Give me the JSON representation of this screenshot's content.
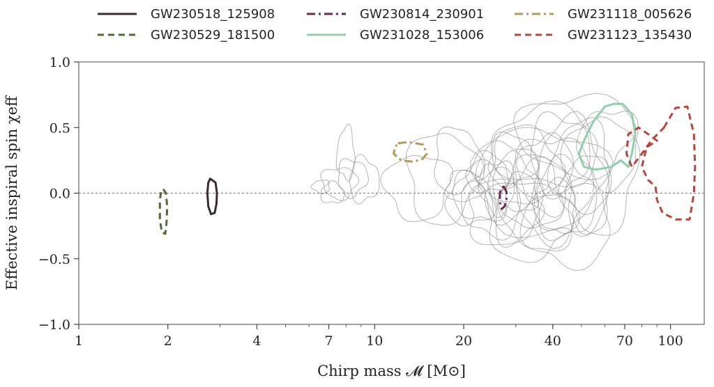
{
  "chart_data": {
    "type": "scatter",
    "title": "",
    "xlabel": "Chirp mass 𝓜 [M⊙]",
    "ylabel": "Effective inspiral spin χeff",
    "xscale": "log",
    "xlim": [
      1,
      130
    ],
    "ylim": [
      -1.0,
      1.0
    ],
    "x_ticks": [
      1,
      2,
      4,
      7,
      10,
      20,
      40,
      70,
      100
    ],
    "x_tick_labels": [
      "1",
      "2",
      "4",
      "7",
      "10",
      "20",
      "40",
      "70",
      "100"
    ],
    "y_ticks": [
      -1.0,
      -0.5,
      0.0,
      0.5,
      1.0
    ],
    "y_tick_labels": [
      "−1.0",
      "−0.5",
      "0.0",
      "0.5",
      "1.0"
    ],
    "zero_line": 0.0,
    "grid": false,
    "legend_position": "top",
    "series": [
      {
        "name": "GW230518_125908",
        "color": "#3b2a2e",
        "style": "solid",
        "contour": [
          [
            2.82,
            0.1
          ],
          [
            2.9,
            0.08
          ],
          [
            2.93,
            0
          ],
          [
            2.92,
            -0.08
          ],
          [
            2.88,
            -0.15
          ],
          [
            2.8,
            -0.16
          ],
          [
            2.74,
            -0.1
          ],
          [
            2.72,
            0
          ],
          [
            2.74,
            0.08
          ],
          [
            2.78,
            0.11
          ]
        ]
      },
      {
        "name": "GW230529_181500",
        "color": "#4e6b35",
        "style": "dashed",
        "contour": [
          [
            1.93,
            0.03
          ],
          [
            1.97,
            0
          ],
          [
            1.99,
            -0.1
          ],
          [
            1.98,
            -0.22
          ],
          [
            1.96,
            -0.31
          ],
          [
            1.91,
            -0.3
          ],
          [
            1.88,
            -0.2
          ],
          [
            1.88,
            -0.05
          ],
          [
            1.9,
            0.02
          ]
        ]
      },
      {
        "name": "GW230814_230901",
        "color": "#6a2a55",
        "style": "dashdot",
        "contour": [
          [
            27.3,
            0.05
          ],
          [
            27.9,
            0.01
          ],
          [
            27.9,
            -0.05
          ],
          [
            27.5,
            -0.1
          ],
          [
            26.9,
            -0.12
          ],
          [
            26.5,
            -0.07
          ],
          [
            26.5,
            0.0
          ],
          [
            26.8,
            0.04
          ]
        ]
      },
      {
        "name": "GW231028_153006",
        "color": "#8fd0ac",
        "style": "solid",
        "contour": [
          [
            55,
            0.55
          ],
          [
            60,
            0.66
          ],
          [
            64,
            0.68
          ],
          [
            69,
            0.68
          ],
          [
            74,
            0.6
          ],
          [
            76,
            0.45
          ],
          [
            74,
            0.3
          ],
          [
            72,
            0.2
          ],
          [
            68,
            0.25
          ],
          [
            63,
            0.2
          ],
          [
            56,
            0.18
          ],
          [
            51,
            0.2
          ],
          [
            49,
            0.3
          ],
          [
            51,
            0.4
          ],
          [
            53,
            0.48
          ]
        ]
      },
      {
        "name": "GW231118_005626",
        "color": "#b29a5c",
        "style": "dashdot",
        "contour": [
          [
            12,
            0.38
          ],
          [
            13,
            0.39
          ],
          [
            14.6,
            0.37
          ],
          [
            15,
            0.3
          ],
          [
            14.5,
            0.26
          ],
          [
            13.5,
            0.24
          ],
          [
            12.3,
            0.25
          ],
          [
            11.6,
            0.3
          ],
          [
            11.7,
            0.35
          ]
        ]
      },
      {
        "name": "GW231123_135430",
        "color": "#b9443a",
        "style": "dashed",
        "contour": [
          [
            95,
            0.5
          ],
          [
            104,
            0.65
          ],
          [
            114,
            0.66
          ],
          [
            120,
            0.45
          ],
          [
            121,
            0.2
          ],
          [
            120,
            0
          ],
          [
            116,
            -0.2
          ],
          [
            104,
            -0.2
          ],
          [
            94,
            -0.15
          ],
          [
            90,
            -0.05
          ],
          [
            89,
            0.05
          ],
          [
            84,
            0.1
          ],
          [
            80,
            0.2
          ],
          [
            83,
            0.35
          ],
          [
            90,
            0.4
          ],
          [
            84,
            0.45
          ],
          [
            78,
            0.5
          ],
          [
            72,
            0.45
          ],
          [
            71,
            0.3
          ],
          [
            74,
            0.2
          ],
          [
            80,
            0.3
          ],
          [
            86,
            0.4
          ]
        ]
      }
    ],
    "population_contours": [
      {
        "cx": 7.6,
        "cy": 0.08,
        "rx": 0.06,
        "ry": 0.12
      },
      {
        "cx": 8.4,
        "cy": 0.12,
        "rx": 0.05,
        "ry": 0.14
      },
      {
        "cx": 9.2,
        "cy": 0.1,
        "rx": 0.05,
        "ry": 0.17
      },
      {
        "cx": 7.2,
        "cy": 0.0,
        "rx": 0.04,
        "ry": 0.08
      },
      {
        "cx": 8.0,
        "cy": 0.3,
        "rx": 0.03,
        "ry": 0.2
      },
      {
        "cx": 6.6,
        "cy": 0.05,
        "rx": 0.03,
        "ry": 0.05
      },
      {
        "cx": 14.0,
        "cy": 0.05,
        "rx": 0.11,
        "ry": 0.25
      },
      {
        "cx": 17.0,
        "cy": 0.12,
        "rx": 0.12,
        "ry": 0.35
      },
      {
        "cx": 19.0,
        "cy": 0.25,
        "rx": 0.08,
        "ry": 0.25
      },
      {
        "cx": 21.0,
        "cy": -0.05,
        "rx": 0.08,
        "ry": 0.2
      },
      {
        "cx": 23.0,
        "cy": 0.0,
        "rx": 0.09,
        "ry": 0.22
      },
      {
        "cx": 25.0,
        "cy": -0.08,
        "rx": 0.1,
        "ry": 0.25
      },
      {
        "cx": 26.0,
        "cy": 0.05,
        "rx": 0.06,
        "ry": 0.2
      },
      {
        "cx": 28.0,
        "cy": 0.1,
        "rx": 0.1,
        "ry": 0.3
      },
      {
        "cx": 30.0,
        "cy": -0.05,
        "rx": 0.08,
        "ry": 0.35
      },
      {
        "cx": 32.0,
        "cy": 0.2,
        "rx": 0.12,
        "ry": 0.3
      },
      {
        "cx": 34.0,
        "cy": 0.0,
        "rx": 0.1,
        "ry": 0.28
      },
      {
        "cx": 36.0,
        "cy": -0.1,
        "rx": 0.12,
        "ry": 0.35
      },
      {
        "cx": 38.0,
        "cy": 0.15,
        "rx": 0.09,
        "ry": 0.3
      },
      {
        "cx": 40.0,
        "cy": 0.05,
        "rx": 0.13,
        "ry": 0.4
      },
      {
        "cx": 42.0,
        "cy": 0.3,
        "rx": 0.1,
        "ry": 0.3
      },
      {
        "cx": 44.0,
        "cy": -0.05,
        "rx": 0.1,
        "ry": 0.3
      },
      {
        "cx": 46.0,
        "cy": 0.1,
        "rx": 0.12,
        "ry": 0.45
      },
      {
        "cx": 50.0,
        "cy": 0.2,
        "rx": 0.1,
        "ry": 0.35
      },
      {
        "cx": 52.0,
        "cy": 0.0,
        "rx": 0.08,
        "ry": 0.3
      },
      {
        "cx": 58.0,
        "cy": 0.15,
        "rx": 0.12,
        "ry": 0.45
      },
      {
        "cx": 33.0,
        "cy": -0.2,
        "rx": 0.15,
        "ry": 0.3
      },
      {
        "cx": 29.0,
        "cy": 0.25,
        "rx": 0.08,
        "ry": 0.2
      },
      {
        "cx": 24.0,
        "cy": 0.15,
        "rx": 0.07,
        "ry": 0.15
      },
      {
        "cx": 38.0,
        "cy": 0.35,
        "rx": 0.18,
        "ry": 0.3
      },
      {
        "cx": 45.0,
        "cy": -0.25,
        "rx": 0.15,
        "ry": 0.3
      },
      {
        "cx": 62.0,
        "cy": 0.35,
        "rx": 0.1,
        "ry": 0.3
      },
      {
        "cx": 36.0,
        "cy": 0.1,
        "rx": 0.22,
        "ry": 0.4
      },
      {
        "cx": 27.0,
        "cy": -0.15,
        "rx": 0.12,
        "ry": 0.25
      },
      {
        "cx": 20.0,
        "cy": 0.05,
        "rx": 0.06,
        "ry": 0.12
      },
      {
        "cx": 31.0,
        "cy": 0.0,
        "rx": 0.06,
        "ry": 0.15
      },
      {
        "cx": 41.0,
        "cy": -0.1,
        "rx": 0.07,
        "ry": 0.2
      },
      {
        "cx": 48.0,
        "cy": 0.45,
        "rx": 0.2,
        "ry": 0.3
      }
    ]
  }
}
